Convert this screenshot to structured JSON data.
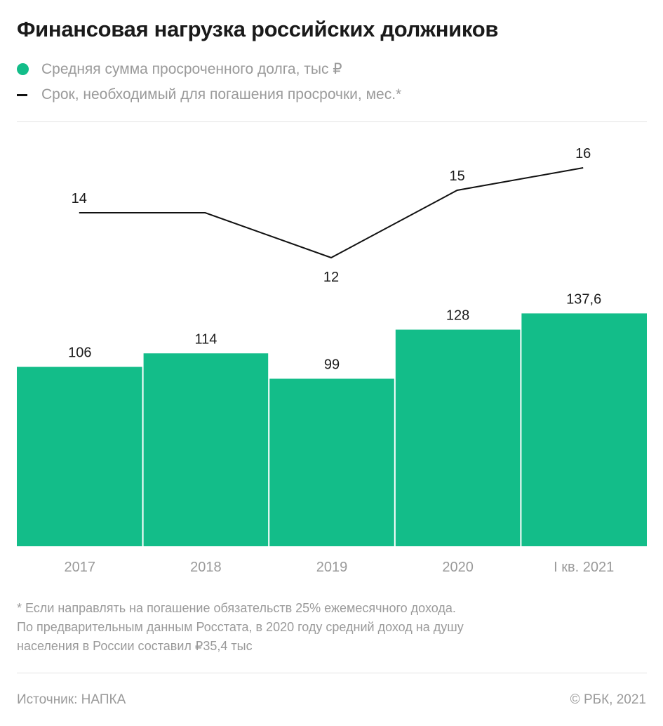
{
  "title": "Финансовая нагрузка российских должников",
  "legend": [
    {
      "label": "Средняя сумма просроченного долга, тыс ₽",
      "marker": "circle"
    },
    {
      "label": "Срок, необходимый для погашения просрочки, мес.*",
      "marker": "line"
    }
  ],
  "colors": {
    "bar": "#13bd89",
    "line": "#111111",
    "text_gray": "#9a9a9a"
  },
  "chart_data": {
    "type": "bar+line",
    "categories": [
      "2017",
      "2018",
      "2019",
      "2020",
      "I кв. 2021"
    ],
    "series": [
      {
        "name": "Средняя сумма просроченного долга, тыс ₽",
        "type": "bar",
        "values": [
          106,
          114,
          99,
          128,
          137.6
        ],
        "labels": [
          "106",
          "114",
          "99",
          "128",
          "137,6"
        ]
      },
      {
        "name": "Срок, необходимый для погашения просрочки, мес.*",
        "type": "line",
        "values": [
          14,
          14,
          12,
          15,
          16
        ],
        "labels": [
          "14",
          "",
          "12",
          "15",
          "16"
        ]
      }
    ],
    "grid": false
  },
  "note": [
    "* Если направлять на погашение обязательств 25% ежемесячного дохода.",
    "По предварительным данным Росстата, в 2020 году средний доход на душу",
    "населения в России составил ₽35,4 тыс"
  ],
  "source": "Источник: НАПКА",
  "copyright": "© РБК, 2021"
}
